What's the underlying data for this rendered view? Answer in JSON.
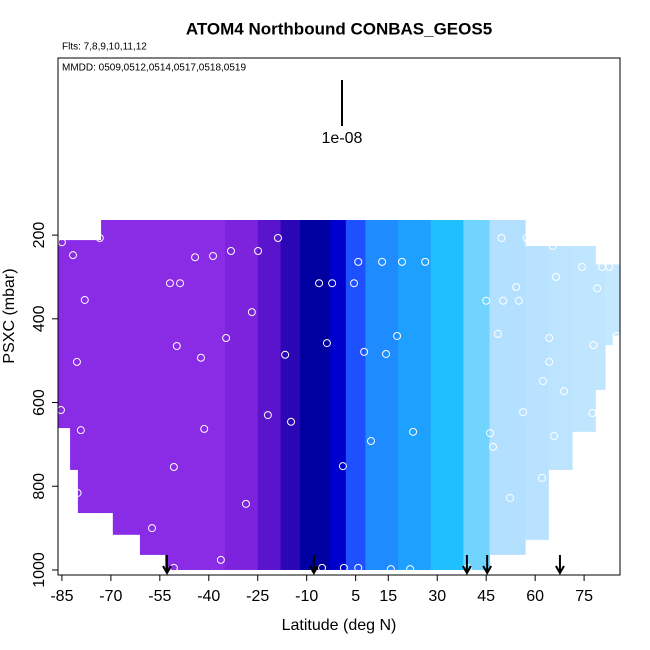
{
  "chart_data": {
    "type": "curtain",
    "title": "ATOM4 Northbound CONBAS_GEOS5",
    "subtitle": "Flts: 7,8,9,10,11,12",
    "annotation": "MMDD: 0509,0512,0514,0517,0518,0519",
    "legend_label": "1e-08",
    "x_label": "Latitude (deg N)",
    "y_label": "PSXC (mbar)",
    "xlim": [
      -86.2,
      86
    ],
    "ylim": [
      1012,
      -223
    ],
    "y_reversed": true,
    "xticks": [
      -85,
      -70,
      -55,
      -40,
      -25,
      -10,
      5,
      15,
      30,
      45,
      60,
      75
    ],
    "yticks": [
      200,
      400,
      600,
      800,
      1000
    ],
    "columns": [
      {
        "lat": [
          -86.2,
          -82.5
        ],
        "top": 212,
        "bottom": 661,
        "color": "#8a2be6"
      },
      {
        "lat": [
          -82.5,
          -80.1
        ],
        "top": 212,
        "bottom": 761,
        "color": "#8a2be6"
      },
      {
        "lat": [
          -80.1,
          -73
        ],
        "top": 212,
        "bottom": 864,
        "color": "#8a2be6"
      },
      {
        "lat": [
          -73,
          -69.4
        ],
        "top": 164,
        "bottom": 864,
        "color": "#8a2be6"
      },
      {
        "lat": [
          -69.4,
          -61.1
        ],
        "top": 164,
        "bottom": 916,
        "color": "#8a2be6"
      },
      {
        "lat": [
          -61.1,
          -53.4
        ],
        "top": 164,
        "bottom": 964,
        "color": "#8a2be6"
      },
      {
        "lat": [
          -53.4,
          -35
        ],
        "top": 164,
        "bottom": 1000,
        "color": "#8a2be6"
      },
      {
        "lat": [
          -35,
          -25
        ],
        "top": 164,
        "bottom": 1000,
        "color": "#7d22dd"
      },
      {
        "lat": [
          -25,
          -18
        ],
        "top": 164,
        "bottom": 1000,
        "color": "#5a14cc"
      },
      {
        "lat": [
          -18,
          -12
        ],
        "top": 164,
        "bottom": 1000,
        "color": "#2a06b4"
      },
      {
        "lat": [
          -12,
          -3
        ],
        "top": 164,
        "bottom": 1000,
        "color": "#0000a0"
      },
      {
        "lat": [
          -3,
          2
        ],
        "top": 164,
        "bottom": 1000,
        "color": "#0000cd"
      },
      {
        "lat": [
          2,
          8
        ],
        "top": 164,
        "bottom": 1000,
        "color": "#1e50ff"
      },
      {
        "lat": [
          8,
          18
        ],
        "top": 164,
        "bottom": 1000,
        "color": "#1e8cff"
      },
      {
        "lat": [
          18,
          28
        ],
        "top": 164,
        "bottom": 1000,
        "color": "#1ea0ff"
      },
      {
        "lat": [
          28,
          38
        ],
        "top": 164,
        "bottom": 1000,
        "color": "#20c0ff"
      },
      {
        "lat": [
          38,
          46
        ],
        "top": 164,
        "bottom": 1000,
        "color": "#70d4ff"
      },
      {
        "lat": [
          46,
          55.4
        ],
        "top": 164,
        "bottom": 964,
        "color": "#b4e0ff"
      },
      {
        "lat": [
          55.4,
          56.9
        ],
        "top": 164,
        "bottom": 964,
        "color": "#b4e0ff"
      },
      {
        "lat": [
          56.9,
          64
        ],
        "top": 226,
        "bottom": 928,
        "color": "#b8e2ff"
      },
      {
        "lat": [
          64,
          71.3
        ],
        "top": 226,
        "bottom": 761,
        "color": "#bce4ff"
      },
      {
        "lat": [
          71.3,
          78.4
        ],
        "top": 226,
        "bottom": 670,
        "color": "#c0e6ff"
      },
      {
        "lat": [
          78.4,
          81.4
        ],
        "top": 270,
        "bottom": 570,
        "color": "#c0e6ff"
      },
      {
        "lat": [
          81.4,
          83.6
        ],
        "top": 270,
        "bottom": 463,
        "color": "#c4e8ff"
      },
      {
        "lat": [
          83.6,
          86
        ],
        "top": 270,
        "bottom": 440,
        "color": "#c4e8ff"
      }
    ],
    "points": {
      "color": "#ffffff",
      "x": [
        -85,
        -73.4,
        -81.6,
        -78,
        -80.4,
        -85.3,
        -79.2,
        -80.2,
        -57.4,
        -50.7,
        -51.9,
        -48.8,
        -49.8,
        -50.7,
        -44.2,
        -38.7,
        -33.2,
        -42.4,
        -34.7,
        -41.4,
        -36.3,
        -28.6,
        -26.8,
        -24.9,
        -18.8,
        -21.9,
        -16.6,
        -14.8,
        -6.2,
        -2.2,
        -3.8,
        1.1,
        4.5,
        5.8,
        7.6,
        9.7,
        1.4,
        -5.3,
        5.8,
        13.1,
        14.3,
        17.7,
        19.2,
        26.3,
        22.6,
        15.8,
        21.7,
        49.7,
        57.4,
        65.4,
        71.2,
        77.3,
        66.4,
        74.4,
        80.5,
        82.7,
        45,
        50.2,
        54.2,
        55,
        79,
        48.6,
        64.3,
        84.9,
        77.9,
        64.3,
        62.4,
        68.9,
        77.5,
        56.3,
        46.2,
        47.1,
        65.8,
        73.2,
        62.1,
        52.3,
        53,
        47.1,
        39.4
      ],
      "y": [
        217,
        207,
        248,
        355,
        503,
        618,
        666,
        816,
        900,
        995,
        315,
        315,
        465,
        754,
        253,
        250,
        238,
        493,
        446,
        663,
        976,
        842,
        384,
        238,
        207,
        630,
        486,
        646,
        315,
        315,
        458,
        752,
        315,
        264,
        479,
        692,
        995,
        995,
        995,
        264,
        484,
        441,
        264,
        264,
        670,
        998,
        998,
        207,
        207,
        226,
        217,
        217,
        300,
        276,
        276,
        276,
        357,
        357,
        324,
        357,
        327,
        436,
        446,
        441,
        463,
        503,
        549,
        573,
        625,
        623,
        673,
        706,
        680,
        682,
        780,
        828,
        976,
        1005,
        995
      ]
    },
    "arrows": [
      -52.8,
      -7.8,
      39.1,
      45.3,
      67.6
    ]
  }
}
